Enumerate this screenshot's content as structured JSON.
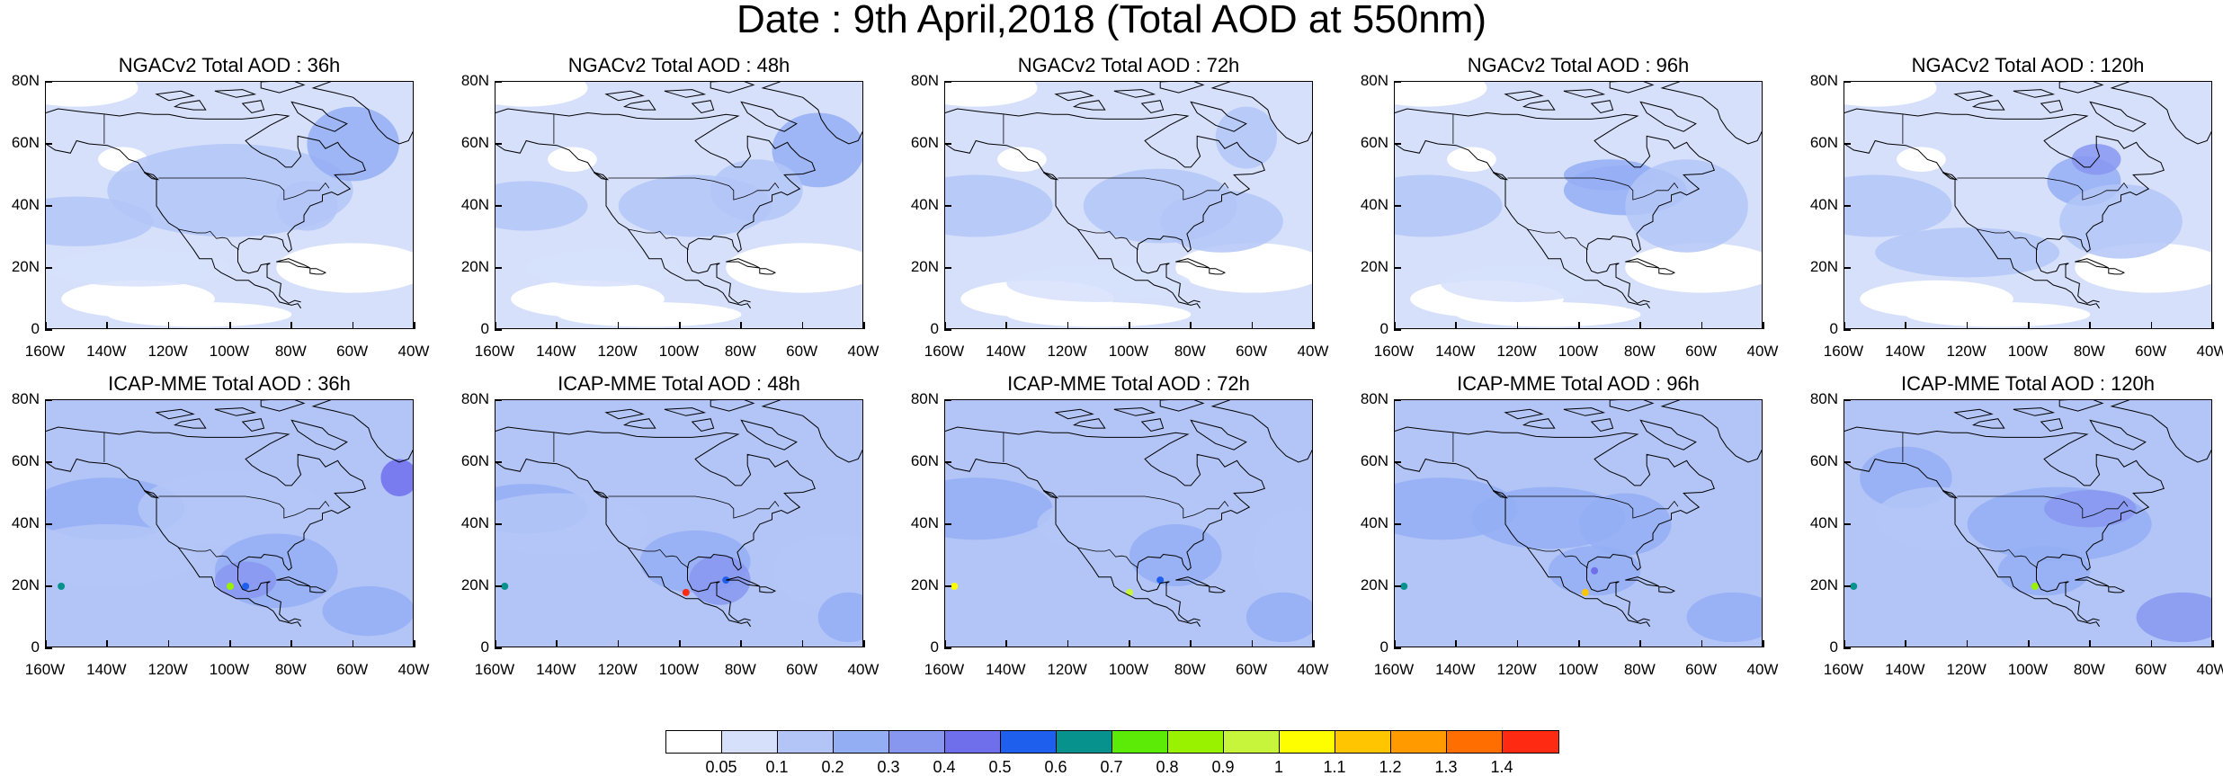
{
  "title": "Date : 9th April,2018 (Total AOD at 550nm)",
  "panels": [
    {
      "title": "NGACv2 Total AOD : 36h",
      "model": "NGACv2",
      "forecast_hour": 36
    },
    {
      "title": "NGACv2 Total AOD : 48h",
      "model": "NGACv2",
      "forecast_hour": 48
    },
    {
      "title": "NGACv2 Total AOD : 72h",
      "model": "NGACv2",
      "forecast_hour": 72
    },
    {
      "title": "NGACv2 Total AOD : 96h",
      "model": "NGACv2",
      "forecast_hour": 96
    },
    {
      "title": "NGACv2 Total AOD : 120h",
      "model": "NGACv2",
      "forecast_hour": 120
    },
    {
      "title": "ICAP-MME Total AOD : 36h",
      "model": "ICAP-MME",
      "forecast_hour": 36
    },
    {
      "title": "ICAP-MME Total AOD : 48h",
      "model": "ICAP-MME",
      "forecast_hour": 48
    },
    {
      "title": "ICAP-MME Total AOD : 72h",
      "model": "ICAP-MME",
      "forecast_hour": 72
    },
    {
      "title": "ICAP-MME Total AOD : 96h",
      "model": "ICAP-MME",
      "forecast_hour": 96
    },
    {
      "title": "ICAP-MME Total AOD : 120h",
      "model": "ICAP-MME",
      "forecast_hour": 120
    }
  ],
  "axes": {
    "y_labels": [
      "80N",
      "60N",
      "40N",
      "20N",
      "0"
    ],
    "x_labels": [
      "160W",
      "140W",
      "120W",
      "100W",
      "80W",
      "60W",
      "40W"
    ]
  },
  "colorbar": {
    "labels": [
      "0.05",
      "0.1",
      "0.2",
      "0.3",
      "0.4",
      "0.5",
      "0.6",
      "0.7",
      "0.8",
      "0.9",
      "1",
      "1.1",
      "1.2",
      "1.3",
      "1.4"
    ],
    "colors": [
      "#ffffff",
      "#d6e0fb",
      "#b3c5f7",
      "#94aef4",
      "#8797f0",
      "#6f6fec",
      "#1f5fee",
      "#08928e",
      "#5ceb07",
      "#98f200",
      "#c7f53b",
      "#fffe00",
      "#ffc600",
      "#ff9a00",
      "#ff6e00",
      "#ff2a12"
    ]
  }
}
